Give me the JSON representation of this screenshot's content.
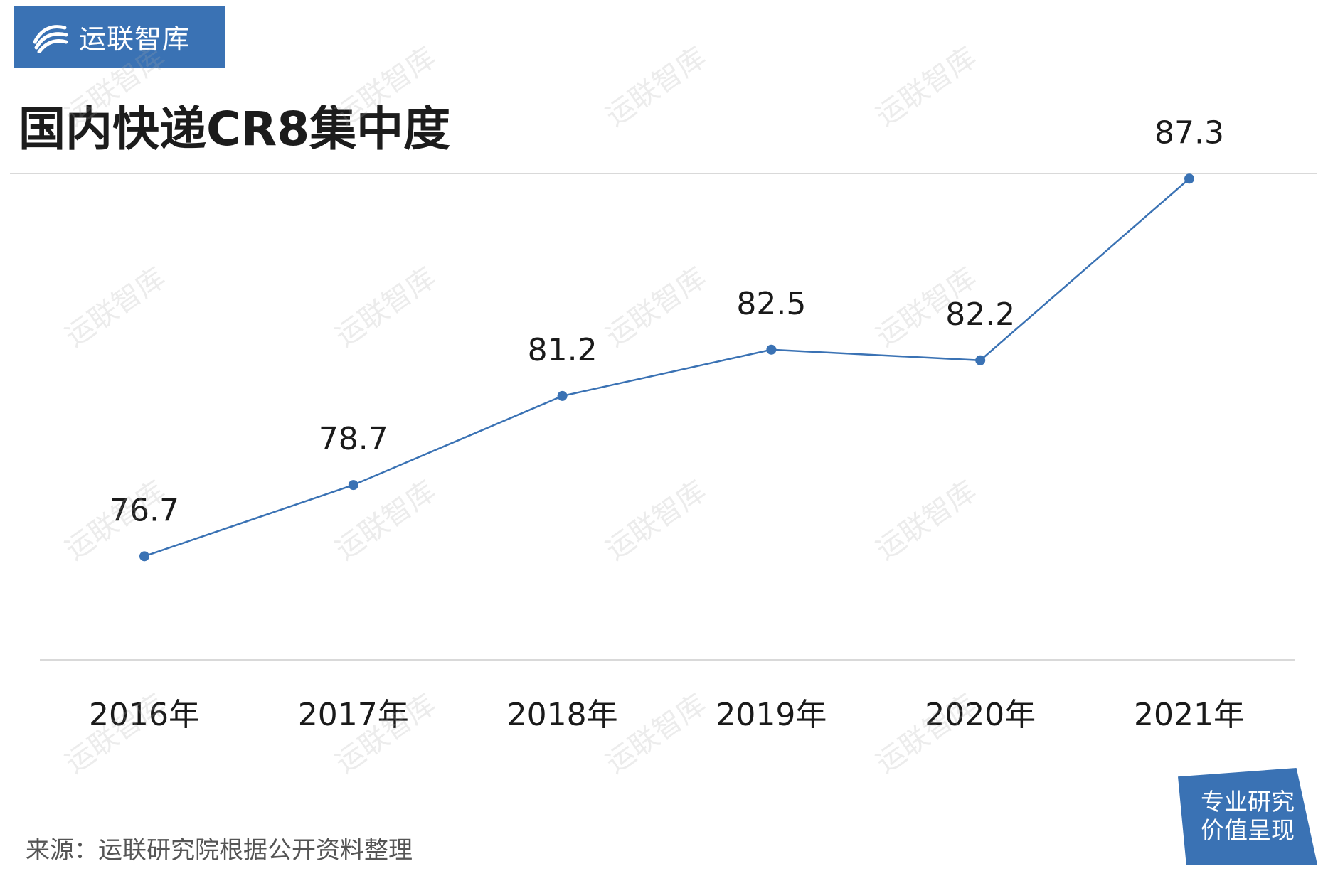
{
  "brand": {
    "name": "运联智库",
    "color": "#3a72b4"
  },
  "page_title": "国内快递CR8集中度",
  "source_note": "来源：运联研究院根据公开资料整理",
  "corner_tag": {
    "line1": "专业研究",
    "line2": "价值呈现"
  },
  "watermark_text": "运联智库",
  "chart_data": {
    "type": "line",
    "title": "国内快递CR8集中度",
    "categories": [
      "2016年",
      "2017年",
      "2018年",
      "2019年",
      "2020年",
      "2021年"
    ],
    "series": [
      {
        "values": [
          76.7,
          78.7,
          81.2,
          82.5,
          82.2,
          87.3
        ]
      }
    ],
    "data_labels": [
      "76.7",
      "78.7",
      "81.2",
      "82.5",
      "82.2",
      "87.3"
    ],
    "ylim": [
      70,
      90
    ],
    "grid": false,
    "legend": "none",
    "line_color": "#3a72b4"
  }
}
